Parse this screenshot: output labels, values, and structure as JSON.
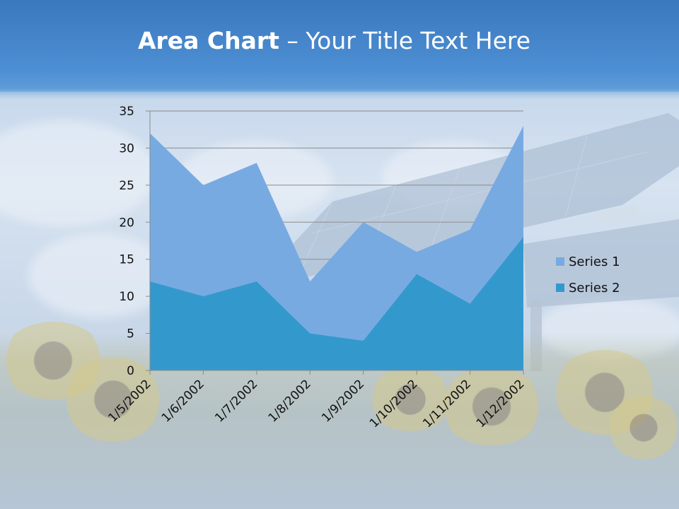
{
  "slide": {
    "title_bold": "Area Chart",
    "title_dash": " – ",
    "title_rest": "Your Title Text Here"
  },
  "chart_data": {
    "type": "area",
    "categories": [
      "1/5/2002",
      "1/6/2002",
      "1/7/2002",
      "1/8/2002",
      "1/9/2002",
      "1/10/2002",
      "1/11/2002",
      "1/12/2002"
    ],
    "series": [
      {
        "name": "Series 1",
        "values": [
          32,
          25,
          28,
          12,
          20,
          16,
          19,
          33
        ],
        "color": "#78aae2"
      },
      {
        "name": "Series 2",
        "values": [
          12,
          10,
          12,
          5,
          4,
          13,
          9,
          18
        ],
        "color": "#3399cc"
      }
    ],
    "ylim": [
      0,
      35
    ],
    "yticks": [
      0,
      5,
      10,
      15,
      20,
      25,
      30,
      35
    ],
    "grid": true,
    "legend": "right",
    "xlabel": "",
    "ylabel": ""
  }
}
